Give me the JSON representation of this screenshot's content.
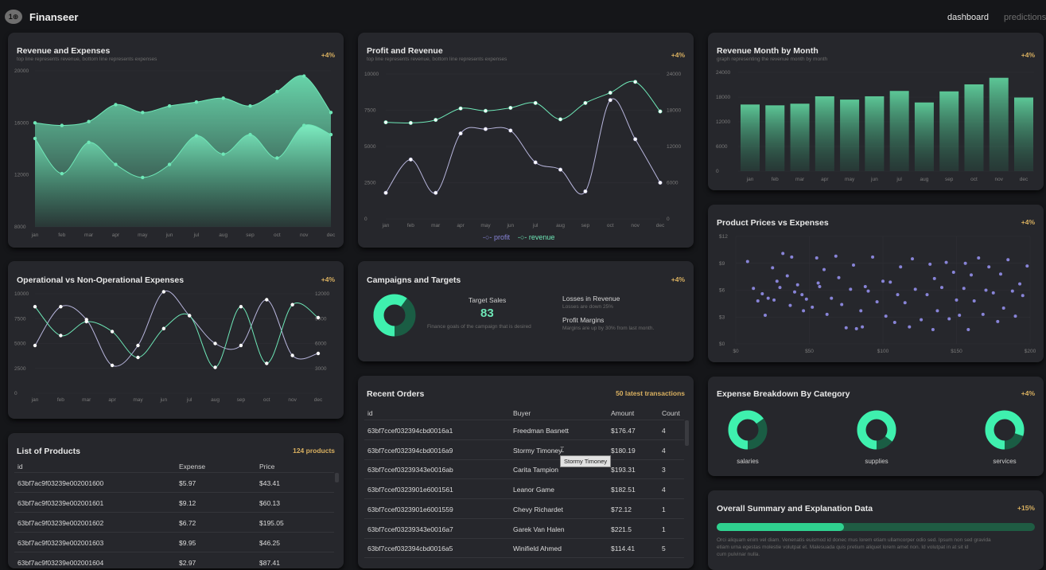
{
  "app": {
    "title": "Finanseer",
    "logo_text": "1⊕",
    "nav": {
      "dashboard": "dashboard",
      "predictions": "predictions"
    }
  },
  "colors": {
    "accent": "#6ee7b7",
    "accent_dark": "#1f8a5c",
    "purple": "#8884d8",
    "badge": "#d9b060"
  },
  "months": [
    "jan",
    "feb",
    "mar",
    "apr",
    "may",
    "jun",
    "jul",
    "aug",
    "sep",
    "oct",
    "nov",
    "dec"
  ],
  "revenue_expenses": {
    "title": "Revenue and Expenses",
    "subtitle": "top line represents revenue, bottom line represents expenses",
    "badge": "+4%",
    "yticks": [
      "20000",
      "16000",
      "12000",
      "8000"
    ],
    "chart_data": {
      "type": "area",
      "ylim": [
        8000,
        20000
      ],
      "series": [
        {
          "name": "revenue",
          "values": [
            16000,
            15800,
            16100,
            17400,
            16800,
            17300,
            17600,
            17900,
            17300,
            18400,
            19600,
            16800
          ]
        },
        {
          "name": "expenses",
          "values": [
            14800,
            12100,
            14500,
            12800,
            11800,
            12800,
            15000,
            13600,
            15100,
            13300,
            15800,
            15100
          ]
        }
      ]
    }
  },
  "profit_revenue": {
    "title": "Profit and Revenue",
    "subtitle": "top line represents revenue, bottom line represents expenses",
    "badge": "+4%",
    "yticks_left": [
      "10000",
      "7500",
      "5000",
      "2500",
      "0"
    ],
    "yticks_right": [
      "24000",
      "18000",
      "12000",
      "6000",
      "0"
    ],
    "legend": {
      "profit": "profit",
      "revenue": "revenue"
    },
    "chart_data": {
      "type": "line",
      "series": [
        {
          "name": "profit",
          "axis": "left",
          "ylim": [
            0,
            10000
          ],
          "values": [
            1800,
            4100,
            1800,
            5900,
            6200,
            6100,
            3900,
            3400,
            1900,
            8200,
            5500,
            2500
          ]
        },
        {
          "name": "revenue",
          "axis": "right",
          "ylim": [
            0,
            24000
          ],
          "values": [
            16000,
            15900,
            16400,
            18300,
            17900,
            18400,
            19200,
            16500,
            19200,
            20900,
            22700,
            17800
          ]
        }
      ]
    }
  },
  "revenue_month": {
    "title": "Revenue Month by Month",
    "subtitle": "graph representing the revenue month by month",
    "badge": "+4%",
    "yticks": [
      "24000",
      "18000",
      "12000",
      "6000",
      "0"
    ],
    "chart_data": {
      "type": "bar",
      "ylim": [
        0,
        24000
      ],
      "values": [
        16200,
        16000,
        16400,
        18200,
        17400,
        18200,
        19500,
        16700,
        19400,
        21100,
        22700,
        17900
      ]
    }
  },
  "operational": {
    "title": "Operational vs Non-Operational Expenses",
    "badge": "+4%",
    "yticks_left": [
      "10000",
      "7500",
      "5000",
      "2500",
      "0"
    ],
    "yticks_right": [
      "12000",
      "9000",
      "6000",
      "3000"
    ],
    "chart_data": {
      "type": "line",
      "series": [
        {
          "name": "non-operational",
          "values": [
            4800,
            8700,
            7400,
            2800,
            4800,
            10200,
            7800,
            5000,
            4800,
            9400,
            3800,
            4000
          ]
        },
        {
          "name": "operational",
          "values": [
            8700,
            5800,
            7200,
            6200,
            3600,
            6500,
            7800,
            2600,
            8700,
            3000,
            8900,
            7600
          ]
        }
      ]
    }
  },
  "campaigns": {
    "title": "Campaigns and Targets",
    "badge": "+4%",
    "target_label": "Target Sales",
    "target_value": "83",
    "target_desc": "Finance goals of the campaign that is desired",
    "losses_label": "Losses in Revenue",
    "losses_desc": "Losses are down 25%",
    "margins_label": "Profit Margins",
    "margins_desc": "Margins are up by 30% from last month.",
    "donut_fraction": 0.6
  },
  "scatter": {
    "title": "Product Prices vs Expenses",
    "badge": "+4%",
    "yticks": [
      "$12",
      "$9",
      "$6",
      "$3",
      "$0"
    ],
    "xticks": [
      "$0",
      "$50",
      "$100",
      "$150",
      "$200"
    ],
    "chart_data": {
      "type": "scatter",
      "xlim": [
        0,
        200
      ],
      "ylim": [
        0,
        12
      ],
      "points": [
        [
          8,
          9.2
        ],
        [
          12,
          6.2
        ],
        [
          15,
          4.8
        ],
        [
          18,
          5.6
        ],
        [
          22,
          5.1
        ],
        [
          20,
          3.2
        ],
        [
          25,
          8.5
        ],
        [
          28,
          7.0
        ],
        [
          30,
          6.3
        ],
        [
          32,
          10.1
        ],
        [
          35,
          7.6
        ],
        [
          37,
          4.3
        ],
        [
          38,
          9.7
        ],
        [
          40,
          5.8
        ],
        [
          42,
          6.6
        ],
        [
          45,
          5.5
        ],
        [
          48,
          5.0
        ],
        [
          52,
          4.1
        ],
        [
          55,
          9.6
        ],
        [
          57,
          6.4
        ],
        [
          60,
          8.3
        ],
        [
          62,
          3.3
        ],
        [
          65,
          5.1
        ],
        [
          68,
          9.8
        ],
        [
          70,
          7.4
        ],
        [
          72,
          4.4
        ],
        [
          75,
          1.8
        ],
        [
          78,
          6.1
        ],
        [
          80,
          8.8
        ],
        [
          82,
          1.7
        ],
        [
          85,
          3.7
        ],
        [
          88,
          6.4
        ],
        [
          90,
          5.9
        ],
        [
          93,
          9.7
        ],
        [
          96,
          4.7
        ],
        [
          100,
          7.0
        ],
        [
          102,
          3.1
        ],
        [
          105,
          6.9
        ],
        [
          108,
          2.4
        ],
        [
          110,
          5.5
        ],
        [
          112,
          8.6
        ],
        [
          115,
          4.6
        ],
        [
          118,
          1.9
        ],
        [
          120,
          9.5
        ],
        [
          122,
          6.1
        ],
        [
          126,
          2.7
        ],
        [
          130,
          5.5
        ],
        [
          132,
          8.9
        ],
        [
          135,
          7.3
        ],
        [
          137,
          3.7
        ],
        [
          140,
          6.3
        ],
        [
          143,
          9.1
        ],
        [
          145,
          2.8
        ],
        [
          148,
          8.0
        ],
        [
          150,
          4.9
        ],
        [
          152,
          3.2
        ],
        [
          155,
          6.2
        ],
        [
          158,
          1.6
        ],
        [
          160,
          7.7
        ],
        [
          162,
          4.8
        ],
        [
          165,
          9.6
        ],
        [
          168,
          3.3
        ],
        [
          170,
          6.0
        ],
        [
          172,
          8.6
        ],
        [
          175,
          5.7
        ],
        [
          178,
          2.5
        ],
        [
          180,
          7.8
        ],
        [
          182,
          4.0
        ],
        [
          185,
          9.4
        ],
        [
          188,
          5.9
        ],
        [
          190,
          3.1
        ],
        [
          193,
          6.7
        ],
        [
          195,
          5.4
        ],
        [
          198,
          8.7
        ],
        [
          56,
          6.8
        ],
        [
          46,
          3.7
        ],
        [
          86,
          1.9
        ],
        [
          134,
          1.6
        ],
        [
          156,
          9.0
        ],
        [
          26,
          4.9
        ]
      ]
    }
  },
  "recent_orders": {
    "title": "Recent Orders",
    "badge": "50 latest transactions",
    "headers": {
      "id": "id",
      "buyer": "Buyer",
      "amount": "Amount",
      "count": "Count"
    },
    "tooltip": "Stormy Timoney",
    "rows": [
      {
        "id": "63bf7ccef032394cbd0016a1",
        "buyer": "Freedman Basnett",
        "amount": "$176.47",
        "count": "4"
      },
      {
        "id": "63bf7ccef032394cbd0016a9",
        "buyer": "Stormy Timoney",
        "amount": "$180.19",
        "count": "4"
      },
      {
        "id": "63bf7ccef03239343e0016ab",
        "buyer": "Carita Tampion",
        "amount": "$193.31",
        "count": "3"
      },
      {
        "id": "63bf7ccef0323901e6001561",
        "buyer": "Leanor Game",
        "amount": "$182.51",
        "count": "4"
      },
      {
        "id": "63bf7ccef0323901e6001559",
        "buyer": "Chevy Richardet",
        "amount": "$72.12",
        "count": "1"
      },
      {
        "id": "63bf7ccef03239343e0016a7",
        "buyer": "Garek Van Halen",
        "amount": "$221.5",
        "count": "1"
      },
      {
        "id": "63bf7ccef032394cbd0016a5",
        "buyer": "Winifield Ahmed",
        "amount": "$114.41",
        "count": "5"
      }
    ]
  },
  "products": {
    "title": "List of Products",
    "badge": "124 products",
    "headers": {
      "id": "id",
      "expense": "Expense",
      "price": "Price"
    },
    "rows": [
      {
        "id": "63bf7ac9f03239e002001600",
        "expense": "$5.97",
        "price": "$43.41"
      },
      {
        "id": "63bf7ac9f03239e002001601",
        "expense": "$9.12",
        "price": "$60.13"
      },
      {
        "id": "63bf7ac9f03239e002001602",
        "expense": "$6.72",
        "price": "$195.05"
      },
      {
        "id": "63bf7ac9f03239e002001603",
        "expense": "$9.95",
        "price": "$46.25"
      },
      {
        "id": "63bf7ac9f03239e002001604",
        "expense": "$2.97",
        "price": "$87.41"
      }
    ]
  },
  "breakdown": {
    "title": "Expense Breakdown By Category",
    "badge": "+4%",
    "categories": [
      {
        "label": "salaries",
        "fraction": 0.65
      },
      {
        "label": "supplies",
        "fraction": 0.85
      },
      {
        "label": "services",
        "fraction": 0.8
      }
    ]
  },
  "summary": {
    "title": "Overall Summary and Explanation Data",
    "badge": "+15%",
    "progress": 0.4,
    "text1": "Orci aliquam enim vel diam. Venenatis euismod id donec mus lorem etiam ullamcorper odio sed. Ipsum non sed gravida",
    "text2": "etiam urna egestas molestie volutpat et. Malesuada quis pretium aliquet lorem amet non. Id volutpat in at sit id",
    "text3": "cum pulvinar nulla."
  }
}
